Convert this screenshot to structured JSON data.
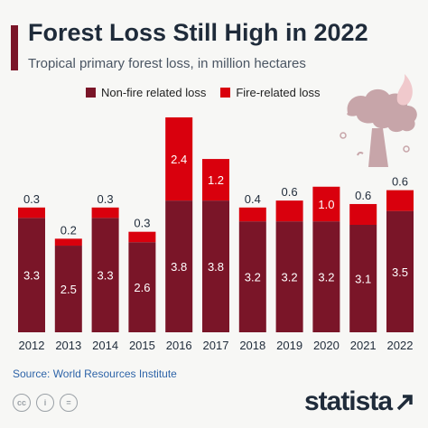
{
  "header": {
    "title": "Forest Loss Still High in 2022",
    "subtitle": "Tropical primary forest loss, in million hectares"
  },
  "legend": [
    {
      "label": "Non-fire related loss",
      "color": "#7a1528"
    },
    {
      "label": "Fire-related loss",
      "color": "#d9000d"
    }
  ],
  "chart_data": {
    "type": "bar",
    "stacked": true,
    "categories": [
      "2012",
      "2013",
      "2014",
      "2015",
      "2016",
      "2017",
      "2018",
      "2019",
      "2020",
      "2021",
      "2022"
    ],
    "series": [
      {
        "name": "Non-fire related loss",
        "color": "#7a1528",
        "values": [
          3.3,
          2.5,
          3.3,
          2.6,
          3.8,
          3.8,
          3.2,
          3.2,
          3.2,
          3.1,
          3.5
        ]
      },
      {
        "name": "Fire-related loss",
        "color": "#d9000d",
        "values": [
          0.3,
          0.2,
          0.3,
          0.3,
          2.4,
          1.2,
          0.4,
          0.6,
          1.0,
          0.6,
          0.6
        ]
      }
    ],
    "title": "Forest Loss Still High in 2022",
    "subtitle": "Tropical primary forest loss, in million hectares",
    "xlabel": "",
    "ylabel": "",
    "ylim": [
      0,
      6.2
    ],
    "grid": false,
    "legend_position": "top"
  },
  "footer": {
    "source": "Source: World Resources Institute",
    "license_icons": [
      "cc",
      "by",
      "="
    ],
    "brand": "statista"
  }
}
